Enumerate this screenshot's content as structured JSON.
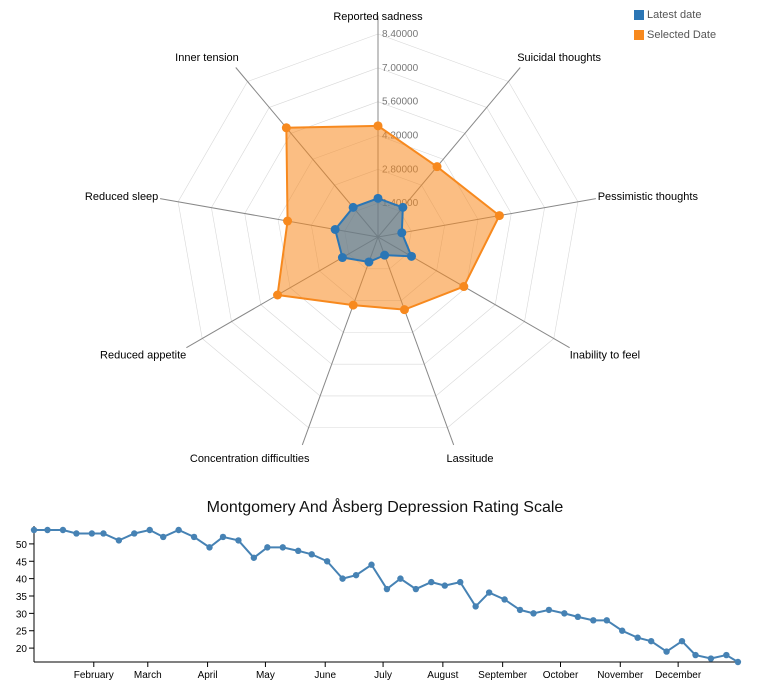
{
  "legend": {
    "items": [
      {
        "label": "Latest date",
        "color": "#2b76b5"
      },
      {
        "label": "Selected Date",
        "color": "#f7891e"
      }
    ]
  },
  "chart_data": [
    {
      "type": "radar",
      "axes": [
        "Reported sadness",
        "Suicidal thoughts",
        "Pessimistic thoughts",
        "Inability to feel",
        "Lassitude",
        "Concentration difficulties",
        "Reduced appetite",
        "Reduced sleep",
        "Inner tension"
      ],
      "tick_labels": [
        "1.40000",
        "2.80000",
        "4.20000",
        "5.60000",
        "7.00000",
        "8.40000"
      ],
      "max": 8.4,
      "series": [
        {
          "name": "Selected Date",
          "values": [
            4.6,
            3.8,
            5.1,
            4.1,
            3.2,
            3.0,
            4.8,
            3.8,
            5.9
          ],
          "color": "#f7891e"
        },
        {
          "name": "Latest date",
          "values": [
            1.6,
            1.6,
            1.0,
            1.6,
            0.8,
            1.1,
            1.7,
            1.8,
            1.6
          ],
          "color": "#2b76b5"
        }
      ]
    },
    {
      "type": "line",
      "title": "Montgomery And Åsberg Depression Rating Scale",
      "x_tick_labels": [
        "February",
        "March",
        "April",
        "May",
        "June",
        "July",
        "August",
        "September",
        "October",
        "November",
        "December"
      ],
      "y_ticks": [
        20,
        25,
        30,
        35,
        40,
        45,
        50
      ],
      "ylim": [
        16,
        54
      ],
      "x_range": [
        1,
        365
      ],
      "x_month_starts": [
        32,
        60,
        91,
        121,
        152,
        182,
        213,
        244,
        274,
        305,
        335
      ],
      "points": [
        [
          1,
          54
        ],
        [
          8,
          54
        ],
        [
          16,
          54
        ],
        [
          23,
          53
        ],
        [
          31,
          53
        ],
        [
          37,
          53
        ],
        [
          45,
          51
        ],
        [
          53,
          53
        ],
        [
          61,
          54
        ],
        [
          68,
          52
        ],
        [
          76,
          54
        ],
        [
          84,
          52
        ],
        [
          92,
          49
        ],
        [
          99,
          52
        ],
        [
          107,
          51
        ],
        [
          115,
          46
        ],
        [
          122,
          49
        ],
        [
          130,
          49
        ],
        [
          138,
          48
        ],
        [
          145,
          47
        ],
        [
          153,
          45
        ],
        [
          161,
          40
        ],
        [
          168,
          41
        ],
        [
          176,
          44
        ],
        [
          184,
          37
        ],
        [
          191,
          40
        ],
        [
          199,
          37
        ],
        [
          207,
          39
        ],
        [
          214,
          38
        ],
        [
          222,
          39
        ],
        [
          230,
          32
        ],
        [
          237,
          36
        ],
        [
          245,
          34
        ],
        [
          253,
          31
        ],
        [
          260,
          30
        ],
        [
          268,
          31
        ],
        [
          276,
          30
        ],
        [
          283,
          29
        ],
        [
          291,
          28
        ],
        [
          298,
          28
        ],
        [
          306,
          25
        ],
        [
          314,
          23
        ],
        [
          321,
          22
        ],
        [
          329,
          19
        ],
        [
          337,
          22
        ],
        [
          344,
          18
        ],
        [
          352,
          17
        ],
        [
          360,
          18
        ],
        [
          366,
          16
        ]
      ],
      "color": "#4682b4"
    }
  ]
}
